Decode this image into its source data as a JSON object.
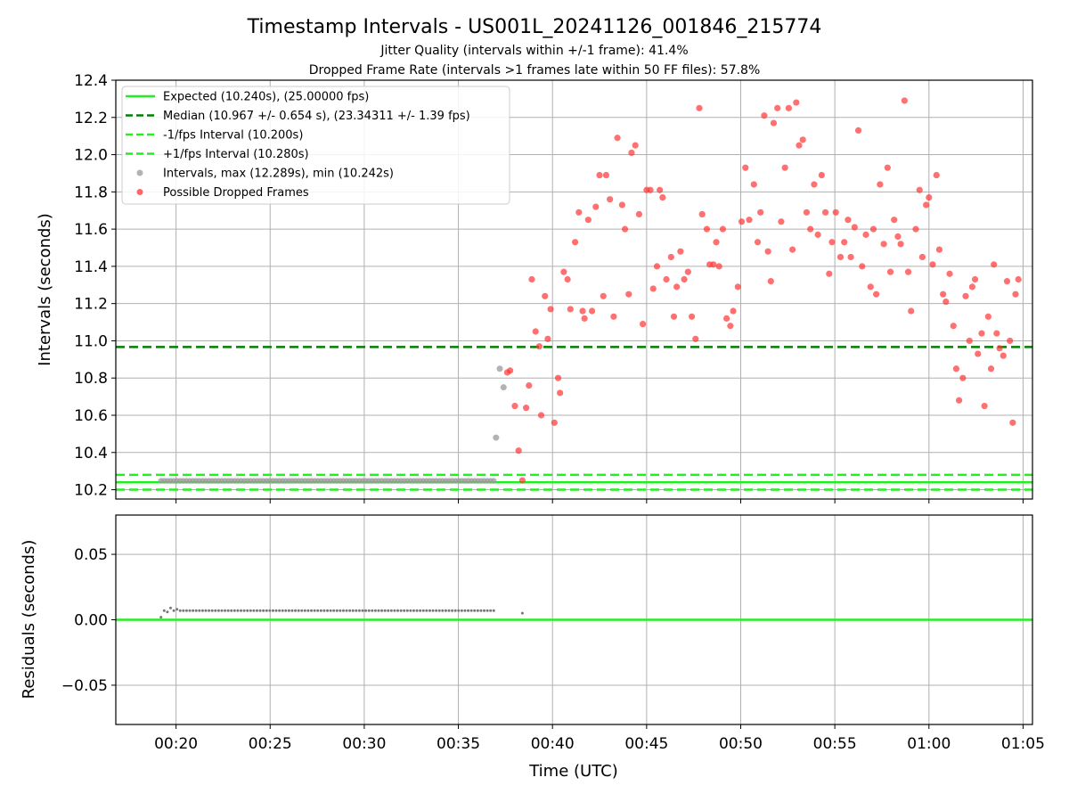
{
  "title": "Timestamp Intervals - US001L_20241126_001846_215774",
  "subtitle1": "Jitter Quality (intervals within +/-1 frame): 41.4%",
  "subtitle2": "Dropped Frame Rate (intervals >1 frames late within 50 FF files): 57.8%",
  "colors": {
    "expected": "#22ee22",
    "median": "#008000",
    "bounds": "#22ee22",
    "intervals": "#999999",
    "dropped": "#ff3333",
    "grid": "#b0b0b0"
  },
  "chart_data": [
    {
      "type": "scatter",
      "ylabel": "Intervals (seconds)",
      "ylim": [
        10.15,
        12.4
      ],
      "xlim_minutes": [
        16.8,
        65.5
      ],
      "yticks": [
        "10.2",
        "10.4",
        "10.6",
        "10.8",
        "11.0",
        "11.2",
        "11.4",
        "11.6",
        "11.8",
        "12.0",
        "12.2",
        "12.4"
      ],
      "ytick_values": [
        10.2,
        10.4,
        10.6,
        10.8,
        11.0,
        11.2,
        11.4,
        11.6,
        11.8,
        12.0,
        12.2,
        12.4
      ],
      "grid": true,
      "legend_placement": "upper-left",
      "legend": [
        {
          "label": "Expected (10.240s), (25.00000 fps)",
          "kind": "line-solid",
          "color": "#22ee22"
        },
        {
          "label": "Median (10.967 +/- 0.654 s), (23.34311 +/- 1.39 fps)",
          "kind": "line-dashed",
          "color": "#008000"
        },
        {
          "label": "-1/fps Interval (10.200s)",
          "kind": "line-dashed",
          "color": "#22ee22"
        },
        {
          "label": "+1/fps Interval (10.280s)",
          "kind": "line-dashed",
          "color": "#22ee22"
        },
        {
          "label": "Intervals, max (12.289s), min (10.242s)",
          "kind": "dot",
          "color": "#999999"
        },
        {
          "label": "Possible Dropped Frames",
          "kind": "dot",
          "color": "#ff3333"
        }
      ],
      "hlines": {
        "expected": 10.24,
        "median": 10.967,
        "minus_1fps": 10.2,
        "plus_1fps": 10.28
      },
      "series": [
        {
          "name": "Intervals, max (12.289s), min (10.242s)",
          "normal_x_start": 19.2,
          "normal_x_step": 0.17,
          "normal_count": 105,
          "normal_y": 10.248,
          "extra_points": [
            [
              37.0,
              10.48
            ],
            [
              37.2,
              10.85
            ],
            [
              37.4,
              10.75
            ]
          ]
        },
        {
          "name": "Possible Dropped Frames",
          "points": [
            [
              37.6,
              10.83
            ],
            [
              37.75,
              10.84
            ],
            [
              38.0,
              10.65
            ],
            [
              38.2,
              10.41
            ],
            [
              38.4,
              10.25
            ],
            [
              38.6,
              10.64
            ],
            [
              38.75,
              10.76
            ],
            [
              38.9,
              11.33
            ],
            [
              39.1,
              11.05
            ],
            [
              39.3,
              10.97
            ],
            [
              39.4,
              10.6
            ],
            [
              39.6,
              11.24
            ],
            [
              39.75,
              11.01
            ],
            [
              39.9,
              11.17
            ],
            [
              40.1,
              10.56
            ],
            [
              40.3,
              10.8
            ],
            [
              40.4,
              10.72
            ],
            [
              40.6,
              11.37
            ],
            [
              40.8,
              11.33
            ],
            [
              40.95,
              11.17
            ],
            [
              41.2,
              11.53
            ],
            [
              41.4,
              11.69
            ],
            [
              41.6,
              11.16
            ],
            [
              41.7,
              11.12
            ],
            [
              41.9,
              11.65
            ],
            [
              42.1,
              11.16
            ],
            [
              42.3,
              11.72
            ],
            [
              42.5,
              11.89
            ],
            [
              42.7,
              11.24
            ],
            [
              42.85,
              11.89
            ],
            [
              43.05,
              11.76
            ],
            [
              43.25,
              11.13
            ],
            [
              43.45,
              12.09
            ],
            [
              43.7,
              11.73
            ],
            [
              43.85,
              11.6
            ],
            [
              44.05,
              11.25
            ],
            [
              44.2,
              12.01
            ],
            [
              44.4,
              12.05
            ],
            [
              44.6,
              11.68
            ],
            [
              44.8,
              11.09
            ],
            [
              45.0,
              11.81
            ],
            [
              45.2,
              11.81
            ],
            [
              45.35,
              11.28
            ],
            [
              45.55,
              11.4
            ],
            [
              45.7,
              11.81
            ],
            [
              45.85,
              11.77
            ],
            [
              46.05,
              11.33
            ],
            [
              46.3,
              11.45
            ],
            [
              46.45,
              11.13
            ],
            [
              46.6,
              11.29
            ],
            [
              46.8,
              11.48
            ],
            [
              47.0,
              11.33
            ],
            [
              47.2,
              11.37
            ],
            [
              47.4,
              11.13
            ],
            [
              47.6,
              11.01
            ],
            [
              47.8,
              12.25
            ],
            [
              47.95,
              11.68
            ],
            [
              48.2,
              11.6
            ],
            [
              48.35,
              11.41
            ],
            [
              48.55,
              11.41
            ],
            [
              48.7,
              11.53
            ],
            [
              48.85,
              11.4
            ],
            [
              49.05,
              11.6
            ],
            [
              49.25,
              11.12
            ],
            [
              49.45,
              11.08
            ],
            [
              49.6,
              11.16
            ],
            [
              49.85,
              11.29
            ],
            [
              50.05,
              11.64
            ],
            [
              50.25,
              11.93
            ],
            [
              50.45,
              11.65
            ],
            [
              50.7,
              11.84
            ],
            [
              50.9,
              11.53
            ],
            [
              51.05,
              11.69
            ],
            [
              51.25,
              12.21
            ],
            [
              51.45,
              11.48
            ],
            [
              51.6,
              11.32
            ],
            [
              51.75,
              12.17
            ],
            [
              51.95,
              12.25
            ],
            [
              52.15,
              11.64
            ],
            [
              52.35,
              11.93
            ],
            [
              52.55,
              12.25
            ],
            [
              52.75,
              11.49
            ],
            [
              52.95,
              12.28
            ],
            [
              53.1,
              12.05
            ],
            [
              53.3,
              12.08
            ],
            [
              53.5,
              11.69
            ],
            [
              53.7,
              11.6
            ],
            [
              53.9,
              11.84
            ],
            [
              54.1,
              11.57
            ],
            [
              54.3,
              11.89
            ],
            [
              54.5,
              11.69
            ],
            [
              54.7,
              11.36
            ],
            [
              54.85,
              11.53
            ],
            [
              55.05,
              11.69
            ],
            [
              55.3,
              11.45
            ],
            [
              55.5,
              11.53
            ],
            [
              55.7,
              11.65
            ],
            [
              55.85,
              11.45
            ],
            [
              56.05,
              11.61
            ],
            [
              56.25,
              12.13
            ],
            [
              56.45,
              11.4
            ],
            [
              56.65,
              11.57
            ],
            [
              56.9,
              11.29
            ],
            [
              57.05,
              11.6
            ],
            [
              57.2,
              11.25
            ],
            [
              57.4,
              11.84
            ],
            [
              57.6,
              11.52
            ],
            [
              57.8,
              11.93
            ],
            [
              57.95,
              11.37
            ],
            [
              58.15,
              11.65
            ],
            [
              58.35,
              11.56
            ],
            [
              58.5,
              11.52
            ],
            [
              58.7,
              12.29
            ],
            [
              58.9,
              11.37
            ],
            [
              59.05,
              11.16
            ],
            [
              59.3,
              11.6
            ],
            [
              59.5,
              11.81
            ],
            [
              59.65,
              11.45
            ],
            [
              59.85,
              11.73
            ],
            [
              60.0,
              11.77
            ],
            [
              60.2,
              11.41
            ],
            [
              60.4,
              11.89
            ],
            [
              60.55,
              11.49
            ],
            [
              60.75,
              11.25
            ],
            [
              60.9,
              11.21
            ],
            [
              61.1,
              11.36
            ],
            [
              61.3,
              11.08
            ],
            [
              61.45,
              10.85
            ],
            [
              61.6,
              10.68
            ],
            [
              61.8,
              10.8
            ],
            [
              61.95,
              11.24
            ],
            [
              62.15,
              11.0
            ],
            [
              62.3,
              11.29
            ],
            [
              62.45,
              11.33
            ],
            [
              62.6,
              10.93
            ],
            [
              62.8,
              11.04
            ],
            [
              62.95,
              10.65
            ],
            [
              63.15,
              11.13
            ],
            [
              63.3,
              10.85
            ],
            [
              63.45,
              11.41
            ],
            [
              63.6,
              11.04
            ],
            [
              63.75,
              10.96
            ],
            [
              63.95,
              10.92
            ],
            [
              64.15,
              11.32
            ],
            [
              64.3,
              11.0
            ],
            [
              64.45,
              10.56
            ],
            [
              64.6,
              11.25
            ],
            [
              64.75,
              11.33
            ]
          ]
        }
      ]
    },
    {
      "type": "scatter",
      "ylabel": "Residuals (seconds)",
      "xlabel": "Time (UTC)",
      "ylim": [
        -0.08,
        0.08
      ],
      "xlim_minutes": [
        16.8,
        65.5
      ],
      "yticks": [
        "0.05",
        "0.00",
        "−0.05"
      ],
      "ytick_values": [
        0.05,
        0.0,
        -0.05
      ],
      "xticks": [
        "00:20",
        "00:25",
        "00:30",
        "00:35",
        "00:40",
        "00:45",
        "00:50",
        "00:55",
        "01:00",
        "01:05"
      ],
      "xtick_minutes": [
        20,
        25,
        30,
        35,
        40,
        45,
        50,
        55,
        60,
        65
      ],
      "grid": true,
      "zero_line_color": "#22ee22",
      "series": [
        {
          "name": "residuals",
          "x_start": 19.2,
          "x_step": 0.17,
          "count": 105,
          "first_values": [
            0.002,
            0.007,
            0.006,
            0.009,
            0.007,
            0.008
          ],
          "value": 0.007,
          "extra_points": [
            [
              38.4,
              0.005
            ]
          ]
        }
      ]
    }
  ]
}
